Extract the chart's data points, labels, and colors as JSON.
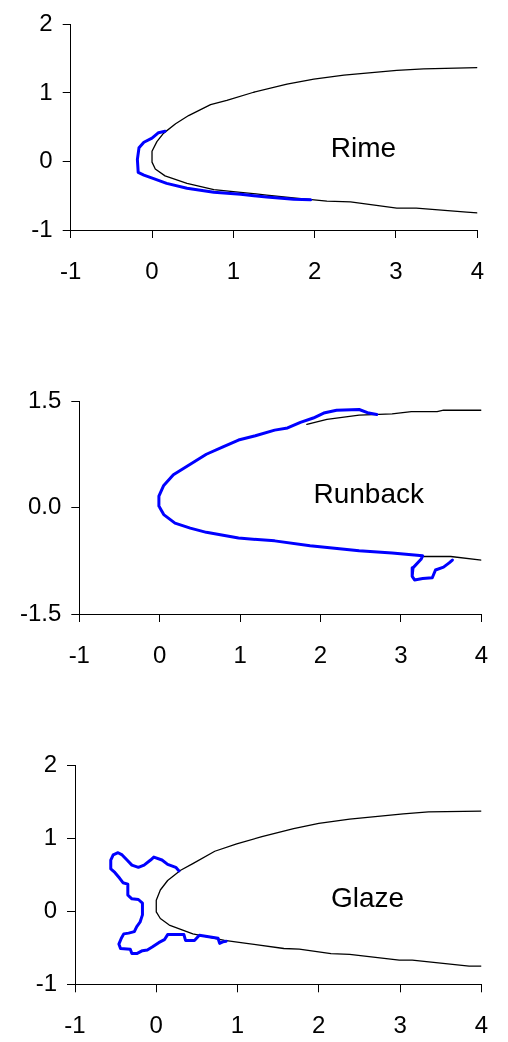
{
  "chart_data": [
    {
      "type": "line",
      "xlim": [
        -1,
        4
      ],
      "ylim": [
        -1,
        2
      ],
      "xticks": [
        -1,
        0,
        1,
        2,
        3,
        4
      ],
      "yticks": [
        -1,
        0,
        1,
        2
      ],
      "annotations": [
        "Rime"
      ],
      "series": [
        {
          "color": "#000000",
          "x": [
            4.0,
            3.34,
            3.01,
            2.36,
            1.99,
            1.66,
            1.25,
            0.92,
            0.72,
            0.45,
            0.29,
            0.14,
            0.06,
            0.0,
            0.0,
            0.04,
            0.16,
            0.43,
            0.76,
            1.09,
            1.41,
            1.74,
            2.15,
            2.44,
            3.01,
            3.25,
            3.87,
            4.0
          ],
          "values": [
            1.37,
            1.35,
            1.33,
            1.26,
            1.2,
            1.13,
            1.01,
            0.89,
            0.83,
            0.67,
            0.55,
            0.41,
            0.29,
            0.15,
            -0.01,
            -0.11,
            -0.21,
            -0.32,
            -0.41,
            -0.45,
            -0.49,
            -0.53,
            -0.58,
            -0.59,
            -0.68,
            -0.68,
            -0.74,
            -0.75
          ]
        },
        {
          "color": "#0000ff",
          "x": [
            0.16,
            0.08,
            0.0,
            -0.1,
            -0.16,
            -0.18,
            -0.17,
            -0.1,
            0.02,
            0.18,
            0.43,
            0.76,
            1.09,
            1.41,
            1.74,
            1.95
          ],
          "values": [
            0.44,
            0.42,
            0.34,
            0.28,
            0.2,
            0.03,
            -0.16,
            -0.2,
            -0.25,
            -0.32,
            -0.39,
            -0.45,
            -0.48,
            -0.52,
            -0.55,
            -0.56
          ]
        }
      ]
    },
    {
      "type": "line",
      "xlim": [
        -1,
        4
      ],
      "ylim": [
        -1.5,
        1.5
      ],
      "xticks": [
        -1,
        0,
        1,
        2,
        3,
        4
      ],
      "yticks": [
        -1.5,
        {
          "value": 0,
          "label": "0.0"
        },
        1.5
      ],
      "annotations": [
        "Runback"
      ],
      "series": [
        {
          "color": "#000000",
          "x": [
            4.0,
            3.53,
            3.45,
            3.13,
            2.89,
            2.48,
            2.08,
            1.83,
            null,
            3.27,
            3.62,
            4.0
          ],
          "values": [
            1.37,
            1.37,
            1.35,
            1.35,
            1.32,
            1.3,
            1.24,
            1.17,
            null,
            -0.69,
            -0.69,
            -0.74
          ]
        },
        {
          "color": "#0000ff",
          "x": [
            2.7,
            2.6,
            2.48,
            2.2,
            2.04,
            1.91,
            1.75,
            1.59,
            1.43,
            1.19,
            0.98,
            0.78,
            0.58,
            0.38,
            0.17,
            0.05,
            -0.01,
            -0.01,
            0.05,
            0.19,
            0.38,
            0.58,
            0.98,
            1.43,
            1.87,
            2.48,
            2.89,
            3.27,
            3.25,
            3.15,
            3.14,
            3.17,
            3.27,
            3.39,
            3.43,
            3.53,
            3.6,
            3.64
          ],
          "values": [
            1.31,
            1.33,
            1.38,
            1.37,
            1.33,
            1.26,
            1.2,
            1.12,
            1.09,
            1.01,
            0.95,
            0.85,
            0.75,
            0.61,
            0.46,
            0.31,
            0.16,
            0.02,
            -0.1,
            -0.22,
            -0.29,
            -0.35,
            -0.43,
            -0.47,
            -0.54,
            -0.61,
            -0.64,
            -0.68,
            -0.73,
            -0.85,
            -0.97,
            -1.02,
            -1.0,
            -0.99,
            -0.88,
            -0.84,
            -0.78,
            -0.74
          ]
        }
      ]
    },
    {
      "type": "line",
      "xlim": [
        -1,
        4
      ],
      "ylim": [
        -1,
        2
      ],
      "xticks": [
        -1,
        0,
        1,
        2,
        3,
        4
      ],
      "yticks": [
        -1,
        0,
        1,
        2
      ],
      "annotations": [
        "Glaze"
      ],
      "series": [
        {
          "color": "#000000",
          "x": [
            4.0,
            3.35,
            3.04,
            2.38,
            2.0,
            1.69,
            1.3,
            0.99,
            0.72,
            0.45,
            0.3,
            0.14,
            0.05,
            0.0,
            0.0,
            0.05,
            0.16,
            0.45,
            0.84,
            1.11,
            1.57,
            1.76,
            2.15,
            2.38,
            2.99,
            3.15,
            3.85,
            4.0
          ],
          "values": [
            1.37,
            1.36,
            1.33,
            1.26,
            1.2,
            1.13,
            1.02,
            0.92,
            0.82,
            0.65,
            0.56,
            0.42,
            0.29,
            0.15,
            -0.01,
            -0.1,
            -0.19,
            -0.31,
            -0.4,
            -0.44,
            -0.51,
            -0.52,
            -0.58,
            -0.59,
            -0.67,
            -0.67,
            -0.75,
            -0.75
          ]
        },
        {
          "color": "#0000ff",
          "x": [
            0.28,
            0.24,
            0.14,
            0.07,
            -0.03,
            -0.07,
            -0.15,
            -0.22,
            -0.3,
            -0.36,
            -0.42,
            -0.47,
            -0.53,
            -0.56,
            -0.56,
            -0.51,
            -0.45,
            -0.41,
            -0.35,
            -0.35,
            -0.3,
            -0.22,
            -0.17,
            -0.17,
            -0.2,
            -0.24,
            -0.27,
            -0.34,
            -0.4,
            -0.43,
            -0.46,
            -0.44,
            -0.32,
            -0.3,
            -0.24,
            -0.17,
            -0.11,
            -0.05,
            0.03,
            0.1,
            0.14,
            0.34,
            0.36,
            0.47,
            0.53,
            0.76,
            0.78,
            0.82,
            0.86
          ],
          "values": [
            0.55,
            0.6,
            0.64,
            0.7,
            0.74,
            0.7,
            0.63,
            0.6,
            0.63,
            0.7,
            0.77,
            0.8,
            0.77,
            0.7,
            0.58,
            0.53,
            0.45,
            0.39,
            0.37,
            0.22,
            0.17,
            0.16,
            0.11,
            -0.05,
            -0.15,
            -0.21,
            -0.28,
            -0.3,
            -0.31,
            -0.37,
            -0.45,
            -0.51,
            -0.52,
            -0.58,
            -0.58,
            -0.54,
            -0.53,
            -0.49,
            -0.43,
            -0.39,
            -0.32,
            -0.32,
            -0.4,
            -0.4,
            -0.33,
            -0.37,
            -0.44,
            -0.42,
            -0.41
          ]
        }
      ]
    }
  ]
}
